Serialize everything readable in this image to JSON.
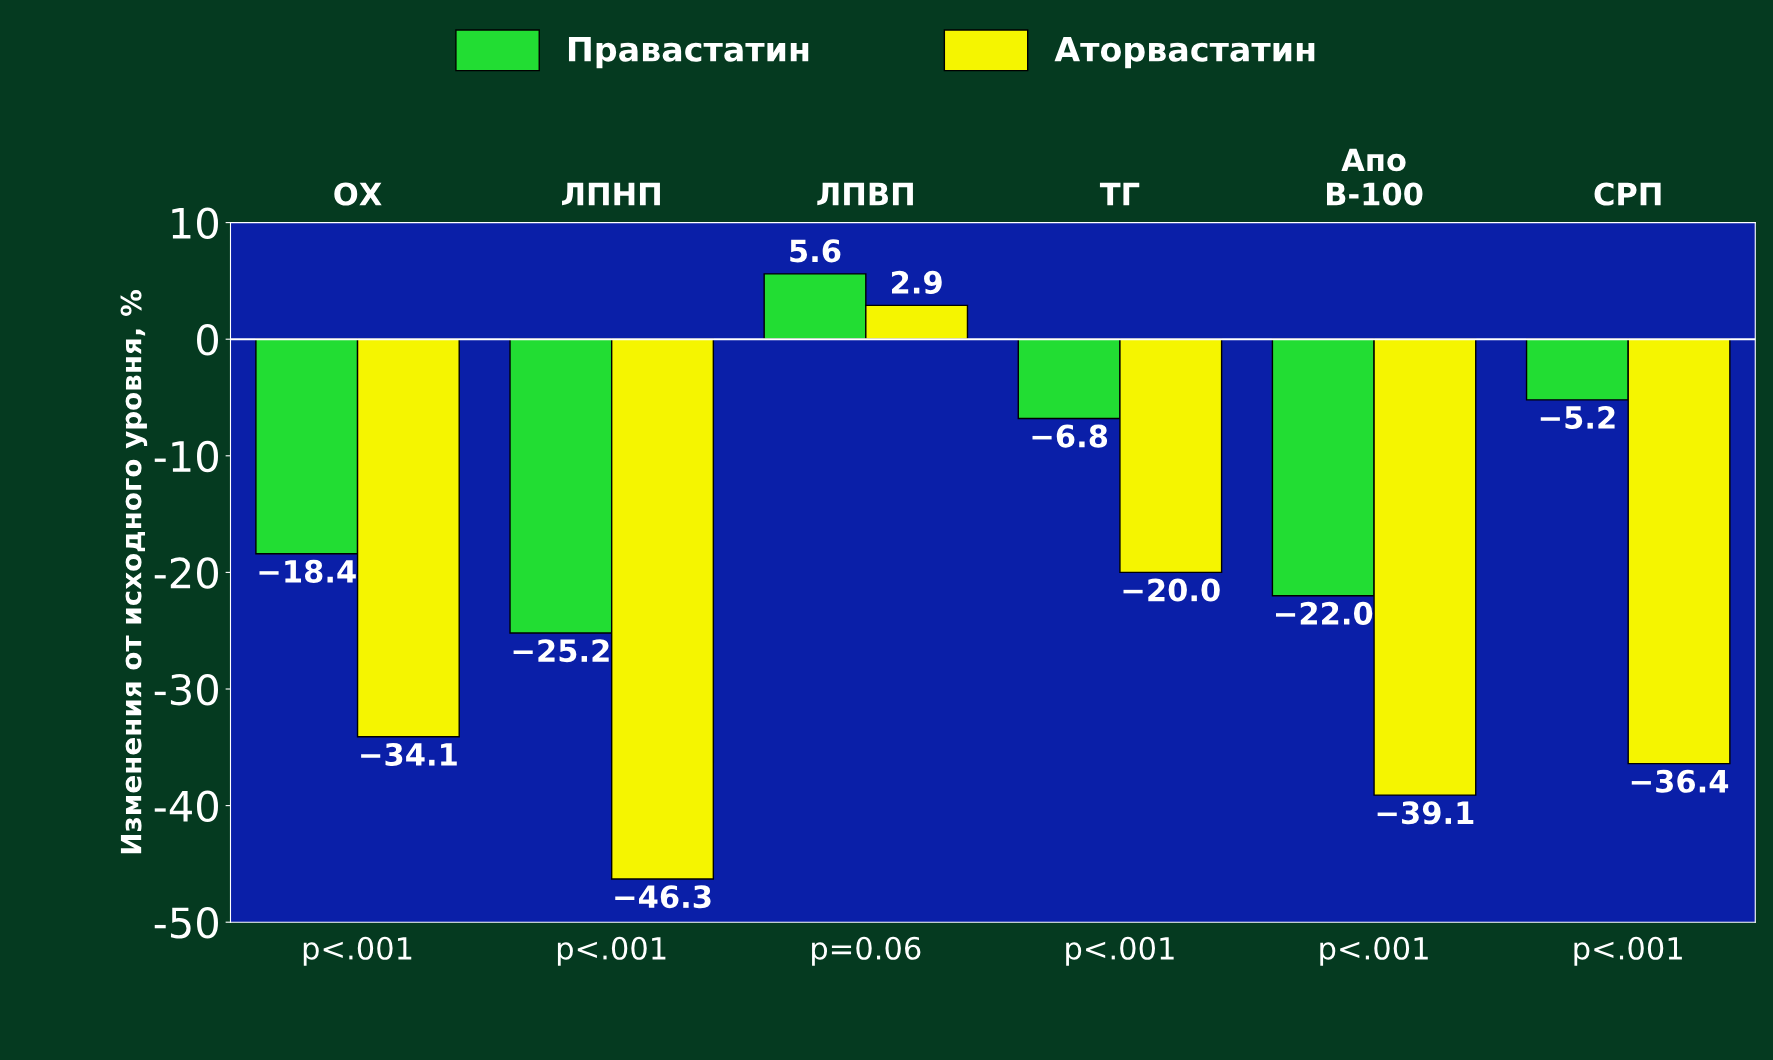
{
  "chart_data": {
    "type": "bar",
    "categories": [
      "ОХ",
      "ЛПНП",
      "ЛПВП",
      "ТГ",
      "Апо\nB-100",
      "СРП"
    ],
    "ylabel": "Изменения от исходного уровня, %",
    "series": [
      {
        "name": "Правастатин",
        "color": "#22dd33",
        "values": [
          -18.4,
          -25.2,
          5.6,
          -6.8,
          -22.0,
          -5.2
        ],
        "value_labels": [
          "−18.4",
          "−25.2",
          "5.6",
          "−6.8",
          "−22.0",
          "−5.2"
        ]
      },
      {
        "name": "Аторвастатин",
        "color": "#f5f500",
        "values": [
          -34.1,
          -46.3,
          2.9,
          -20.0,
          -39.1,
          -36.4
        ],
        "value_labels": [
          "−34.1",
          "−46.3",
          "2.9",
          "−20.0",
          "−39.1",
          "−36.4"
        ]
      }
    ],
    "ylim": [
      -50,
      10
    ],
    "yticks": [
      -50,
      -40,
      -30,
      -20,
      -10,
      0,
      10
    ],
    "ref_lines": [
      {
        "axis": "y",
        "value": 0,
        "color": "#ffffff"
      }
    ],
    "annotations": [
      "p<.001",
      "p<.001",
      "p=0.06",
      "p<.001",
      "p<.001",
      "p<.001"
    ],
    "legend": "top",
    "grid": false
  }
}
